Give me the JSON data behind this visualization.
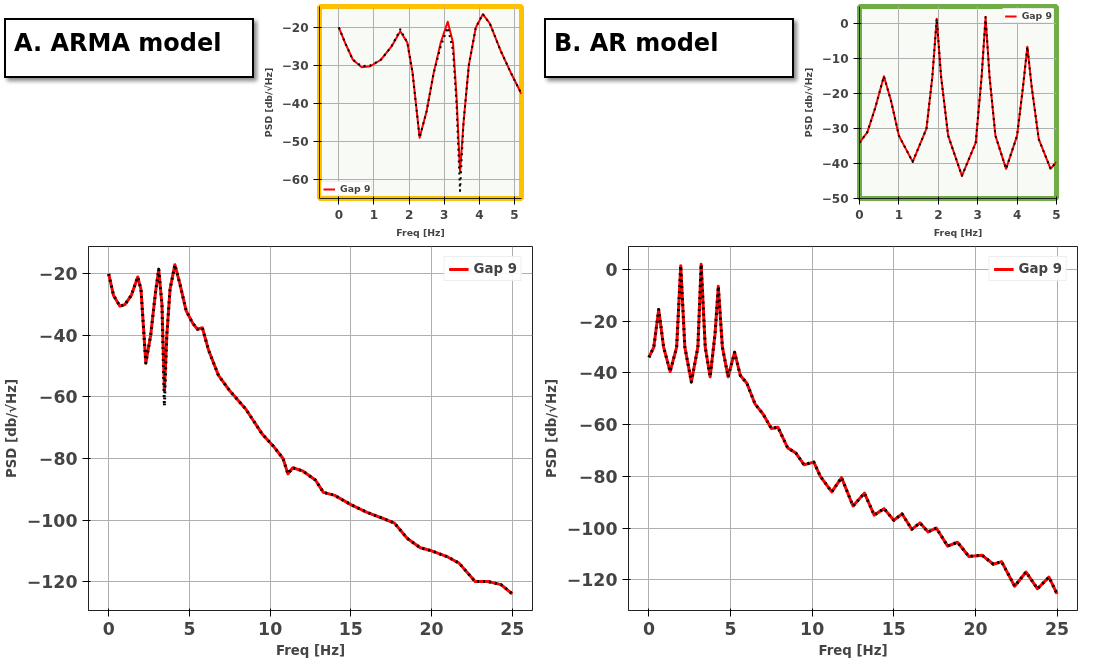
{
  "chart_data": [
    {
      "type": "line",
      "title": "A. ARMA model",
      "xlabel": "Freq [Hz]",
      "ylabel": "PSD [db/√Hz]",
      "xlim": [
        -1.25,
        26.25
      ],
      "ylim": [
        -129.4,
        -11.1
      ],
      "xticks": [
        0,
        5,
        10,
        15,
        20,
        25
      ],
      "yticks": [
        -120,
        -100,
        -80,
        -60,
        -40,
        -20
      ],
      "grid": true,
      "legend": "top right",
      "series": [
        {
          "name": "Gap 9",
          "color": "#ff0000",
          "line_style": "solid",
          "x": [
            0,
            0.3,
            0.7,
            1.0,
            1.4,
            1.8,
            2.0,
            2.3,
            2.6,
            2.9,
            3.1,
            3.3,
            3.45,
            3.6,
            3.8,
            4.1,
            4.4,
            4.8,
            5.2,
            5.5,
            5.8,
            6.2,
            6.8,
            7.5,
            8.5,
            9.5,
            10.2,
            10.8,
            11.1,
            11.4,
            12,
            12.8,
            13.3,
            14,
            15,
            16,
            17,
            17.7,
            18.5,
            19.3,
            20,
            21,
            21.7,
            22.7,
            23.5,
            24.3,
            25
          ],
          "values": [
            -20,
            -27,
            -30.5,
            -30,
            -27,
            -21,
            -25,
            -49,
            -40,
            -26,
            -18.5,
            -30,
            -58,
            -40,
            -25,
            -17,
            -23,
            -32,
            -36,
            -38,
            -37.5,
            -45,
            -53,
            -58,
            -64,
            -72,
            -76,
            -80,
            -85,
            -83,
            -84,
            -87,
            -91,
            -92,
            -95,
            -97.5,
            -99.5,
            -101,
            -106,
            -109,
            -110,
            -112,
            -114,
            -120,
            -120,
            -121,
            -124
          ]
        },
        {
          "color": "#000000",
          "line_style": "dotted",
          "x": [
            0,
            0.3,
            0.7,
            1.0,
            1.4,
            1.8,
            2.0,
            2.3,
            2.6,
            2.9,
            3.1,
            3.3,
            3.45,
            3.6,
            3.8,
            4.1,
            4.4,
            4.8,
            5.2,
            5.5,
            5.8,
            6.2,
            6.8,
            7.5,
            8.5,
            9.5,
            10.2,
            10.8,
            11.1,
            11.4,
            12,
            12.8,
            13.3,
            14,
            15,
            16,
            17,
            17.7,
            18.5,
            19.3,
            20,
            21,
            21.7,
            22.7,
            23.5,
            24.3,
            25
          ],
          "values": [
            -20,
            -27,
            -30.5,
            -30,
            -27,
            -21,
            -25,
            -49,
            -40,
            -26,
            -18.5,
            -30,
            -63,
            -40,
            -25,
            -17,
            -23,
            -32,
            -36,
            -38,
            -37.5,
            -45,
            -53,
            -58,
            -64,
            -72,
            -76,
            -80,
            -85,
            -83,
            -84,
            -87,
            -91,
            -92,
            -95,
            -97.5,
            -99.5,
            -101,
            -106,
            -109,
            -110,
            -112,
            -114,
            -120,
            -120,
            -121,
            -124
          ]
        }
      ]
    },
    {
      "type": "line",
      "xlabel": "Freq [Hz]",
      "ylabel": "PSD [db/√Hz]",
      "xlim": [
        -0.55,
        5.2
      ],
      "ylim": [
        -65,
        -14.5
      ],
      "xticks": [
        0,
        1,
        2,
        3,
        4,
        5
      ],
      "yticks": [
        -60,
        -50,
        -40,
        -30,
        -20
      ],
      "grid": true,
      "legend": "bottom left",
      "series": [
        {
          "name": "Gap 9",
          "color": "#ff0000",
          "line_style": "solid",
          "x": [
            0,
            0.2,
            0.4,
            0.65,
            0.9,
            1.2,
            1.5,
            1.75,
            1.95,
            2.1,
            2.3,
            2.5,
            2.7,
            2.9,
            3.1,
            3.25,
            3.35,
            3.45,
            3.55,
            3.7,
            3.9,
            4.1,
            4.3,
            4.6,
            4.9,
            5.2
          ],
          "values": [
            -20,
            -24.5,
            -28.5,
            -30.5,
            -30.2,
            -28.5,
            -25,
            -21,
            -24,
            -32,
            -49,
            -42,
            -32,
            -24,
            -18.5,
            -24,
            -38,
            -58,
            -45,
            -30,
            -20,
            -16.5,
            -19,
            -26,
            -32,
            -37.5
          ]
        },
        {
          "color": "#000000",
          "line_style": "dotted",
          "x": [
            0,
            0.2,
            0.4,
            0.65,
            0.9,
            1.2,
            1.5,
            1.75,
            1.95,
            2.1,
            2.3,
            2.5,
            2.7,
            2.9,
            3.1,
            3.25,
            3.35,
            3.45,
            3.55,
            3.7,
            3.9,
            4.1,
            4.3,
            4.6,
            4.9,
            5.2
          ],
          "values": [
            -20,
            -24.5,
            -28.5,
            -30.2,
            -30,
            -28.5,
            -25,
            -20.5,
            -24,
            -32,
            -49,
            -42,
            -32,
            -25,
            -20,
            -26,
            -40,
            -63,
            -45,
            -30,
            -20,
            -16.5,
            -19,
            -26,
            -32,
            -37.5
          ]
        }
      ]
    },
    {
      "type": "line",
      "title": "B. AR model",
      "xlabel": "Freq [Hz]",
      "ylabel": "PSD [db/√Hz]",
      "xlim": [
        -1.25,
        26.25
      ],
      "ylim": [
        -131.9,
        8.9
      ],
      "xticks": [
        0,
        5,
        10,
        15,
        20,
        25
      ],
      "yticks": [
        -120,
        -100,
        -80,
        -60,
        -40,
        -20,
        0
      ],
      "grid": true,
      "legend": "top right",
      "series": [
        {
          "name": "Gap 9",
          "color": "#ff0000",
          "line_style": "solid",
          "x": [
            0,
            0.3,
            0.6,
            0.9,
            1.3,
            1.7,
            1.95,
            2.2,
            2.6,
            3.0,
            3.2,
            3.45,
            3.75,
            4.05,
            4.25,
            4.5,
            4.85,
            5.25,
            5.6,
            6.0,
            6.5,
            7.0,
            7.5,
            7.9,
            8.5,
            9,
            9.5,
            10.1,
            10.5,
            11.2,
            11.8,
            12.5,
            13.2,
            13.8,
            14.4,
            15,
            15.5,
            16.1,
            16.6,
            17.1,
            17.6,
            18.3,
            18.9,
            19.6,
            20.4,
            21.1,
            21.6,
            22.4,
            23.1,
            23.8,
            24.5,
            25
          ],
          "values": [
            -34,
            -30,
            -15.5,
            -30,
            -39.5,
            -30,
            1.5,
            -30,
            -43.5,
            -30,
            2,
            -30,
            -41.5,
            -25,
            -6.5,
            -30,
            -41.5,
            -32,
            -41,
            -44,
            -52,
            -56,
            -61.5,
            -61,
            -69,
            -71,
            -75.5,
            -74.5,
            -80,
            -86,
            -80.5,
            -91.5,
            -86.5,
            -95,
            -92.5,
            -97,
            -94.5,
            -100.5,
            -98,
            -101.5,
            -100,
            -107,
            -105.5,
            -111,
            -110.5,
            -114,
            -113,
            -122.5,
            -117,
            -123.5,
            -119,
            -125.5
          ]
        },
        {
          "color": "#000000",
          "line_style": "dotted",
          "x": [
            0,
            0.3,
            0.6,
            0.9,
            1.3,
            1.7,
            1.95,
            2.2,
            2.6,
            3.0,
            3.2,
            3.45,
            3.75,
            4.05,
            4.25,
            4.5,
            4.85,
            5.25,
            5.6,
            6.0,
            6.5,
            7.0,
            7.5,
            7.9,
            8.5,
            9,
            9.5,
            10.1,
            10.5,
            11.2,
            11.8,
            12.5,
            13.2,
            13.8,
            14.4,
            15,
            15.5,
            16.1,
            16.6,
            17.1,
            17.6,
            18.3,
            18.9,
            19.6,
            20.4,
            21.1,
            21.6,
            22.4,
            23.1,
            23.8,
            24.5,
            25
          ],
          "values": [
            -34,
            -30,
            -15.5,
            -30,
            -39.5,
            -30,
            1.5,
            -30,
            -43.5,
            -30,
            2,
            -30,
            -41.5,
            -25,
            -6.5,
            -30,
            -41.5,
            -32,
            -41,
            -44,
            -52,
            -56,
            -61.5,
            -61,
            -69,
            -71,
            -75.5,
            -74.5,
            -80,
            -86,
            -80.5,
            -91.5,
            -86.5,
            -95,
            -92.5,
            -97,
            -94.5,
            -100.5,
            -98,
            -101.5,
            -100,
            -107,
            -105.5,
            -111,
            -110.5,
            -114,
            -113,
            -122.5,
            -117,
            -123.5,
            -119,
            -125.5
          ]
        }
      ]
    },
    {
      "type": "line",
      "xlabel": "Freq [Hz]",
      "ylabel": "PSD [db/√Hz]",
      "xlim": [
        0,
        5
      ],
      "ylim": [
        -50,
        5
      ],
      "xticks": [
        0,
        1,
        2,
        3,
        4,
        5
      ],
      "yticks": [
        -50,
        -40,
        -30,
        -20,
        -10,
        0
      ],
      "grid": true,
      "legend": "top right",
      "series": [
        {
          "name": "Gap 9",
          "color": "#ff0000",
          "line_style": "solid",
          "x": [
            0,
            0.2,
            0.4,
            0.62,
            0.8,
            1.0,
            1.35,
            1.7,
            1.85,
            1.96,
            2.07,
            2.25,
            2.6,
            2.95,
            3.1,
            3.2,
            3.3,
            3.45,
            3.72,
            4.0,
            4.15,
            4.26,
            4.37,
            4.55,
            4.85,
            5.0
          ],
          "values": [
            -34,
            -31,
            -24,
            -15,
            -22,
            -32,
            -39.5,
            -30,
            -15,
            1.5,
            -15,
            -32,
            -43.5,
            -34,
            -15,
            2,
            -15,
            -32,
            -41.5,
            -32,
            -18,
            -6.5,
            -18,
            -33,
            -41.5,
            -39.5
          ]
        },
        {
          "color": "#000000",
          "line_style": "dotted",
          "x": [
            0,
            0.2,
            0.4,
            0.62,
            0.8,
            1.0,
            1.35,
            1.7,
            1.85,
            1.96,
            2.07,
            2.25,
            2.6,
            2.95,
            3.1,
            3.2,
            3.3,
            3.45,
            3.72,
            4.0,
            4.15,
            4.26,
            4.37,
            4.55,
            4.85,
            5.0
          ],
          "values": [
            -34,
            -31,
            -24,
            -15,
            -22,
            -32,
            -39.5,
            -30,
            -15,
            1.5,
            -15,
            -32,
            -43.5,
            -34,
            -15,
            2,
            -15,
            -32,
            -41.5,
            -32,
            -18,
            -6.5,
            -18,
            -33,
            -41.5,
            -39.5
          ]
        }
      ]
    }
  ]
}
